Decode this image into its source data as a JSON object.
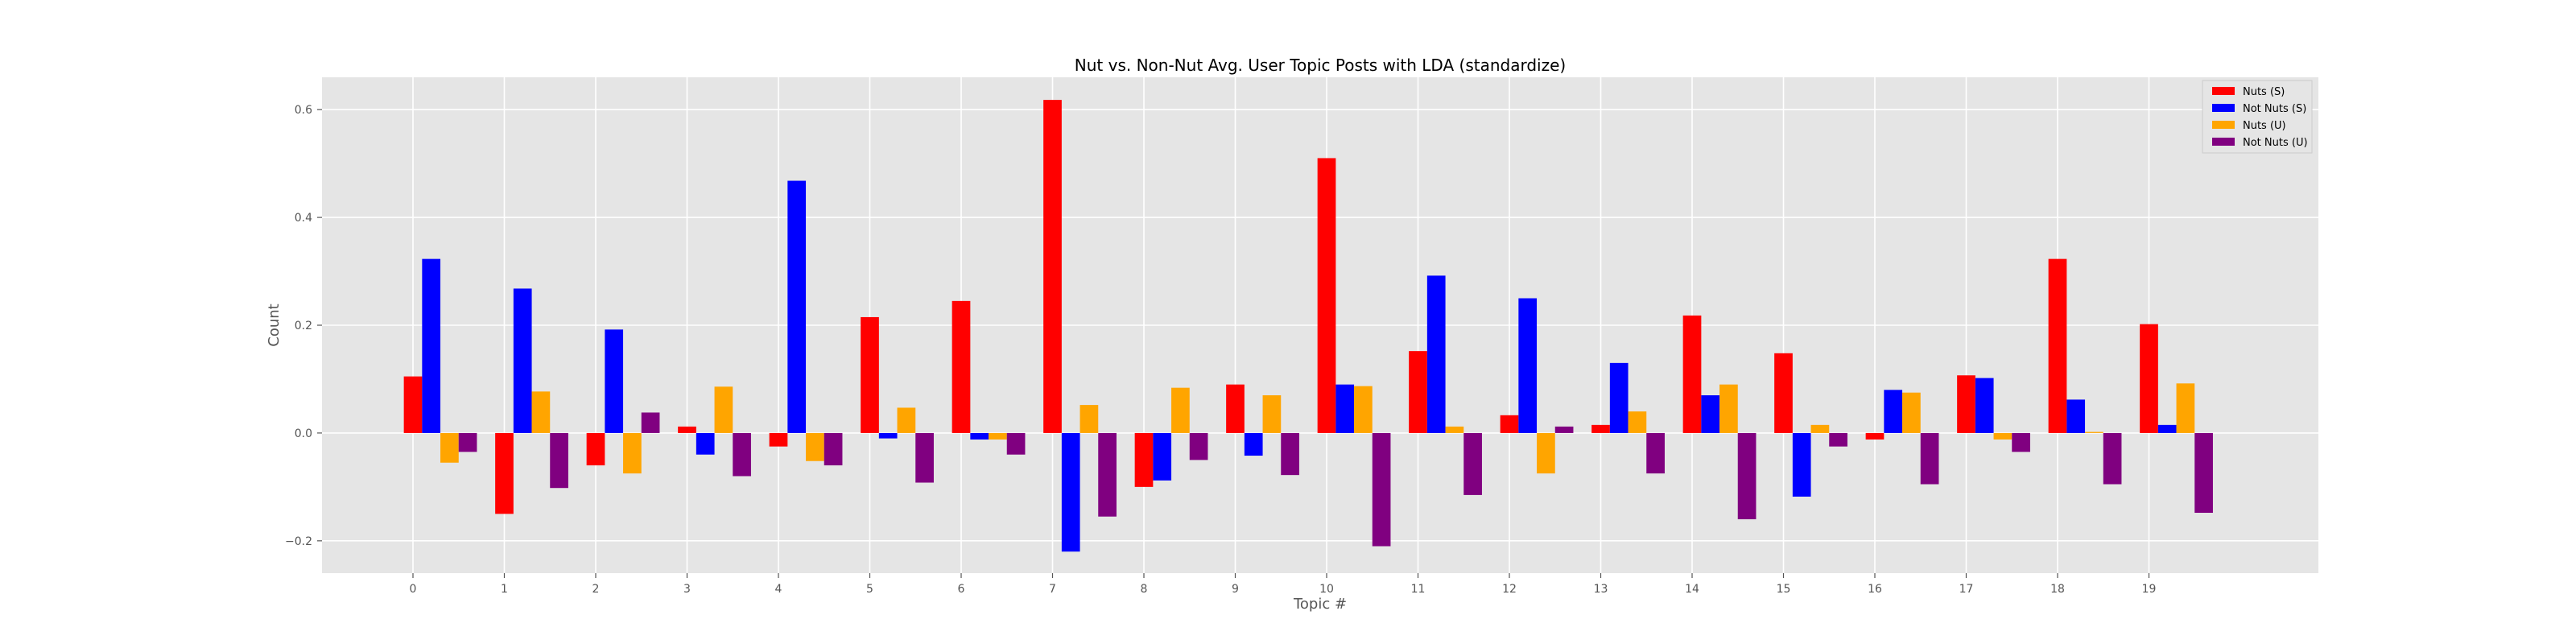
{
  "chart_data": {
    "type": "bar",
    "title": "Nut vs. Non-Nut Avg. User Topic Posts with LDA (standardize)",
    "xlabel": "Topic #",
    "ylabel": "Count",
    "categories": [
      "0",
      "1",
      "2",
      "3",
      "4",
      "5",
      "6",
      "7",
      "8",
      "9",
      "10",
      "11",
      "12",
      "13",
      "14",
      "15",
      "16",
      "17",
      "18",
      "19"
    ],
    "ylim": [
      -0.26,
      0.66
    ],
    "yticks": [
      -0.2,
      0.0,
      0.2,
      0.4,
      0.6
    ],
    "ytick_labels": [
      "−0.2",
      "0.0",
      "0.2",
      "0.4",
      "0.6"
    ],
    "grid": true,
    "legend_position": "top-right",
    "series": [
      {
        "name": "Nuts (S)",
        "color": "#ff0000",
        "values": [
          0.105,
          -0.15,
          -0.06,
          0.012,
          -0.025,
          0.215,
          0.245,
          0.618,
          -0.1,
          0.09,
          0.51,
          0.152,
          0.033,
          0.015,
          0.218,
          0.148,
          -0.012,
          0.107,
          0.323,
          0.202
        ]
      },
      {
        "name": "Not Nuts (S)",
        "color": "#0000ff",
        "values": [
          0.323,
          0.268,
          0.192,
          -0.04,
          0.468,
          -0.01,
          -0.012,
          -0.22,
          -0.088,
          -0.042,
          0.09,
          0.292,
          0.25,
          0.13,
          0.07,
          -0.118,
          0.08,
          0.102,
          0.062,
          0.015
        ]
      },
      {
        "name": "Nuts (U)",
        "color": "#ffa500",
        "values": [
          -0.055,
          0.077,
          -0.075,
          0.086,
          -0.052,
          0.047,
          -0.012,
          0.052,
          0.084,
          0.07,
          0.087,
          0.012,
          -0.075,
          0.04,
          0.09,
          0.015,
          0.075,
          -0.012,
          0.002,
          0.092
        ]
      },
      {
        "name": "Not Nuts (U)",
        "color": "#800080",
        "values": [
          -0.035,
          -0.102,
          0.038,
          -0.08,
          -0.06,
          -0.092,
          -0.04,
          -0.155,
          -0.05,
          -0.078,
          -0.21,
          -0.115,
          0.012,
          -0.075,
          -0.16,
          -0.025,
          -0.095,
          -0.035,
          -0.095,
          -0.148
        ]
      }
    ]
  }
}
